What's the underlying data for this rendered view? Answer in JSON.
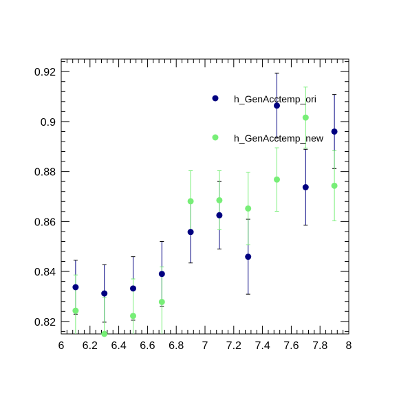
{
  "chart_data": {
    "type": "scatter",
    "title": "",
    "xlabel": "",
    "ylabel": "",
    "xlim": [
      6,
      8
    ],
    "ylim": [
      0.815,
      0.925
    ],
    "x_ticks": [
      6,
      6.2,
      6.4,
      6.6,
      6.8,
      7,
      7.2,
      7.4,
      7.6,
      7.8,
      8
    ],
    "x_tick_labels": [
      "6",
      "6.2",
      "6.4",
      "6.6",
      "6.8",
      "7",
      "7.2",
      "7.4",
      "7.6",
      "7.8",
      "8"
    ],
    "y_ticks": [
      0.82,
      0.84,
      0.86,
      0.88,
      0.9,
      0.92
    ],
    "y_tick_labels": [
      "0.82",
      "0.84",
      "0.86",
      "0.88",
      "0.9",
      "0.92"
    ],
    "grid": false,
    "legend_position": "top-right",
    "series": [
      {
        "name": "h_GenAcctemp_ori",
        "color": "#000080",
        "x": [
          6.1,
          6.3,
          6.5,
          6.7,
          6.9,
          7.1,
          7.3,
          7.5,
          7.7,
          7.9
        ],
        "y": [
          0.8337,
          0.8312,
          0.8332,
          0.839,
          0.8558,
          0.8625,
          0.8459,
          0.9064,
          0.8737,
          0.896
        ],
        "y_err": [
          0.0108,
          0.0115,
          0.0127,
          0.013,
          0.0124,
          0.0135,
          0.015,
          0.013,
          0.0152,
          0.0148
        ]
      },
      {
        "name": "h_GenAcctemp_new",
        "color": "#77ee77",
        "x": [
          6.1,
          6.3,
          6.5,
          6.7,
          6.9,
          7.1,
          7.3,
          7.5,
          7.7,
          7.9
        ],
        "y": [
          0.8243,
          0.8146,
          0.8222,
          0.8278,
          0.8681,
          0.8685,
          0.8652,
          0.8768,
          0.9016,
          0.8743
        ],
        "y_err": [
          0.0143,
          0.015,
          0.0148,
          0.014,
          0.0122,
          0.0118,
          0.0145,
          0.0127,
          0.0122,
          0.014
        ]
      }
    ]
  }
}
